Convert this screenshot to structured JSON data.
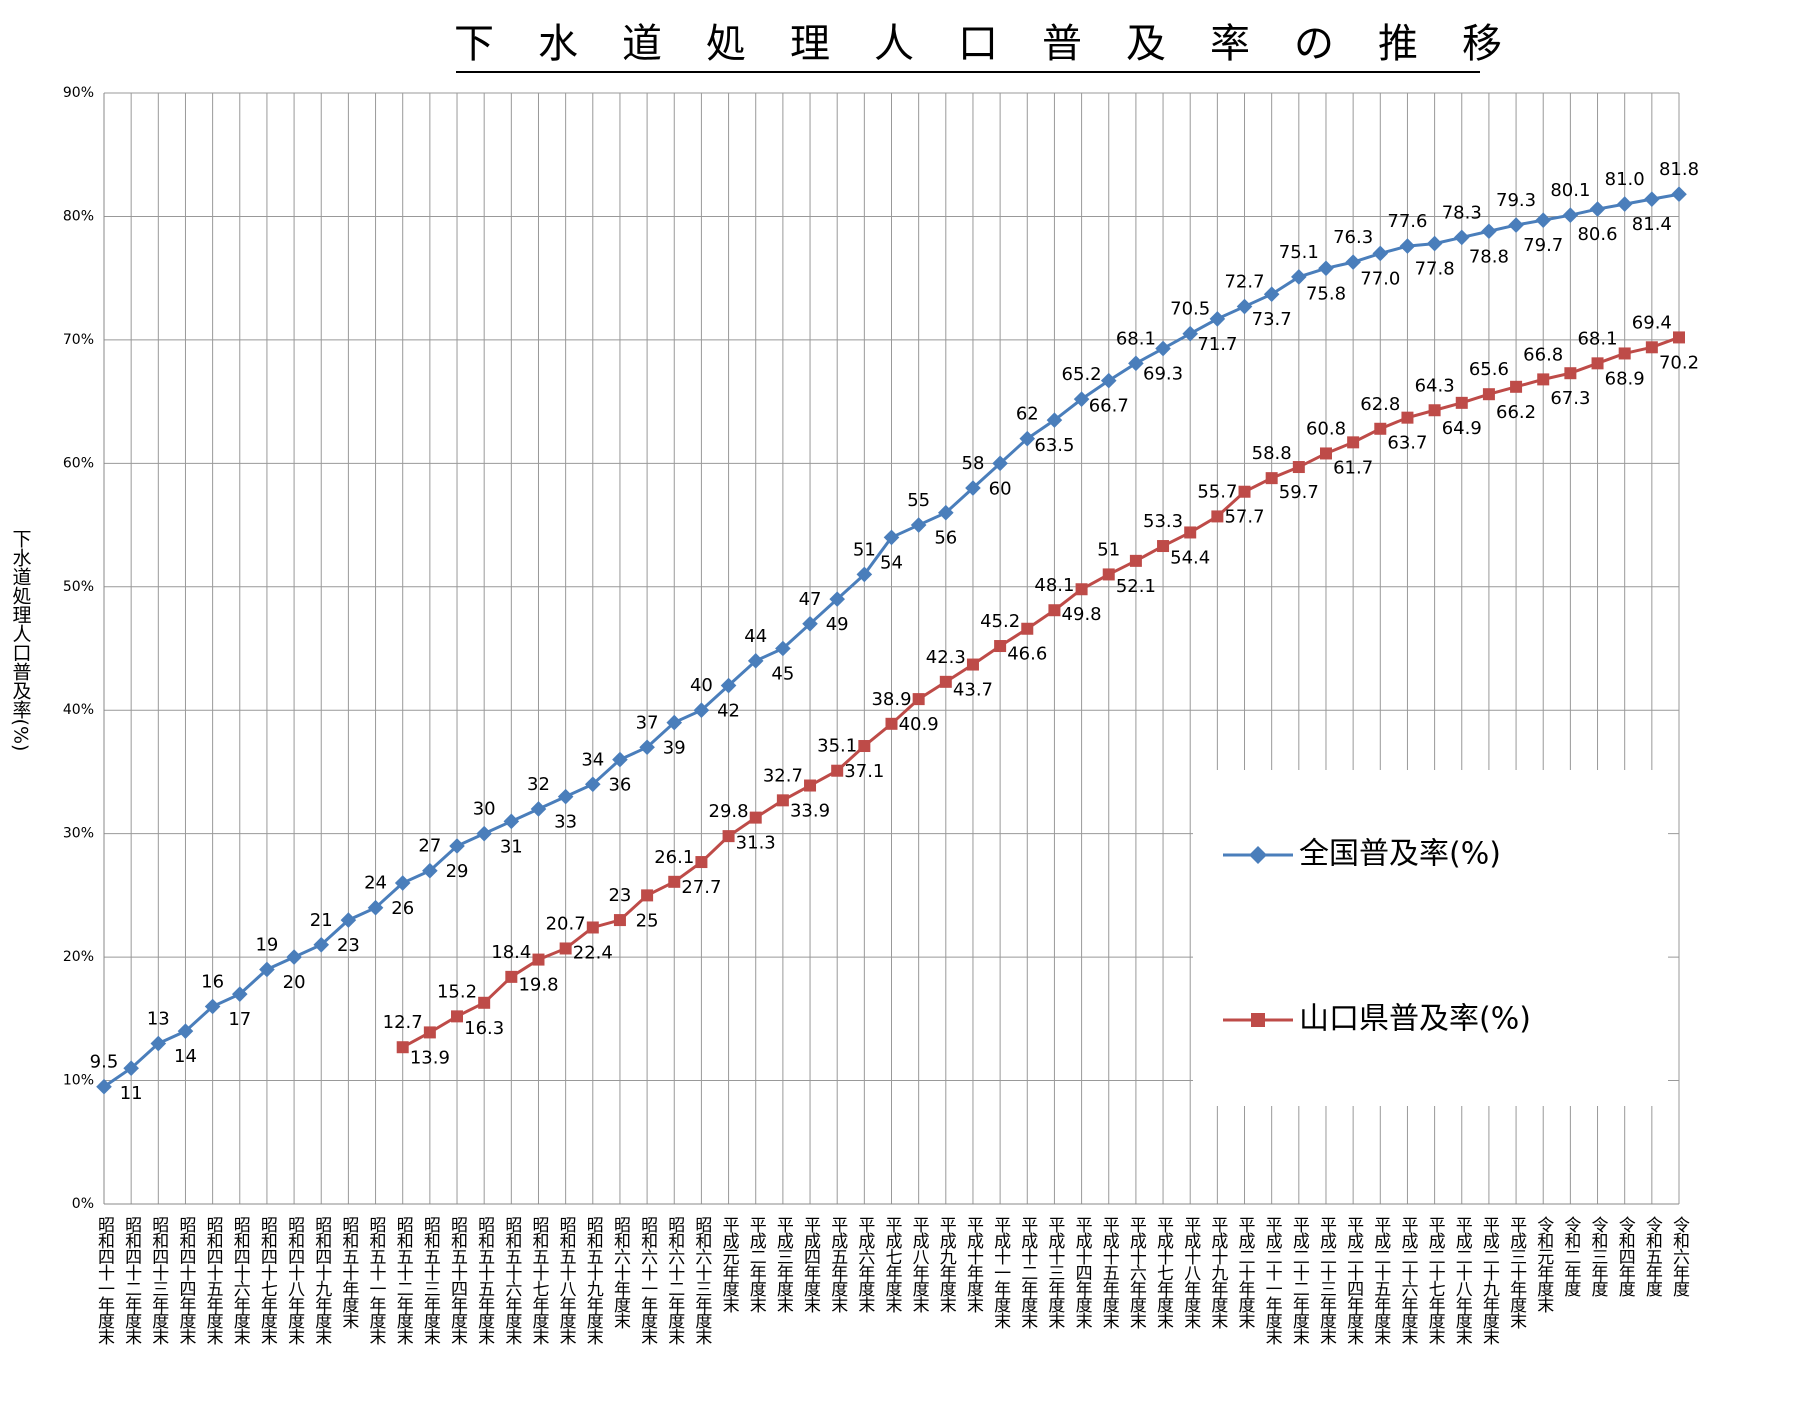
{
  "chart_data": {
    "type": "line",
    "title": "下水道処理人口普及率の推移",
    "y_label": "下水道処理人口普及率(%)",
    "categories": [
      "昭和四十一年度末",
      "昭和四十二年度末",
      "昭和四十三年度末",
      "昭和四十四年度末",
      "昭和四十五年度末",
      "昭和四十六年度末",
      "昭和四十七年度末",
      "昭和四十八年度末",
      "昭和四十九年度末",
      "昭和五十年度末",
      "昭和五十一年度末",
      "昭和五十二年度末",
      "昭和五十三年度末",
      "昭和五十四年度末",
      "昭和五十五年度末",
      "昭和五十六年度末",
      "昭和五十七年度末",
      "昭和五十八年度末",
      "昭和五十九年度末",
      "昭和六十年度末",
      "昭和六十一年度末",
      "昭和六十二年度末",
      "昭和六十三年度末",
      "平成元年度末",
      "平成二年度末",
      "平成三年度末",
      "平成四年度末",
      "平成五年度末",
      "平成六年度末",
      "平成七年度末",
      "平成八年度末",
      "平成九年度末",
      "平成十年度末",
      "平成十一年度末",
      "平成十二年度末",
      "平成十三年度末",
      "平成十四年度末",
      "平成十五年度末",
      "平成十六年度末",
      "平成十七年度末",
      "平成十八年度末",
      "平成十九年度末",
      "平成二十年度末",
      "平成二十一年度末",
      "平成二十二年度末",
      "平成二十三年度末",
      "平成二十四年度末",
      "平成二十五年度末",
      "平成二十六年度末",
      "平成二十七年度末",
      "平成二十八年度末",
      "平成二十九年度末",
      "平成三十年度末",
      "令和元年度末",
      "令和二年度",
      "令和三年度",
      "令和四年度",
      "令和五年度",
      "令和六年度"
    ],
    "series": [
      {
        "name": "全国普及率(%)",
        "color": "#4a7ebb",
        "marker": "diamond",
        "values": [
          9.5,
          11,
          13,
          14,
          16,
          17,
          19,
          20,
          21,
          23,
          24,
          26,
          27,
          29,
          30,
          31,
          32,
          33,
          34,
          36,
          37,
          39,
          40,
          42,
          44,
          45,
          47,
          49,
          51,
          54,
          55,
          56,
          58,
          60,
          62,
          63.5,
          65.2,
          66.7,
          68.1,
          69.3,
          70.5,
          71.7,
          72.7,
          73.7,
          75.1,
          75.8,
          76.3,
          77.0,
          77.6,
          77.8,
          78.3,
          78.8,
          79.3,
          79.7,
          80.1,
          80.6,
          81.0,
          81.4,
          81.8
        ],
        "value_labels": [
          "9.5",
          "11",
          "13",
          "14",
          "16",
          "17",
          "19",
          "20",
          "21",
          "23",
          "24",
          "26",
          "27",
          "29",
          "30",
          "31",
          "32",
          "33",
          "34",
          "36",
          "37",
          "39",
          "40",
          "42",
          "44",
          "45",
          "47",
          "49",
          "51",
          "54",
          "55",
          "56",
          "58",
          "60",
          "62",
          "63.5",
          "65.2",
          "66.7",
          "68.1",
          "69.3",
          "70.5",
          "71.7",
          "72.7",
          "73.7",
          "75.1",
          "75.8",
          "76.3",
          "77.0",
          "77.6",
          "77.8",
          "78.3",
          "78.8",
          "79.3",
          "79.7",
          "80.1",
          "80.6",
          "81.0",
          "81.4",
          "81.8"
        ]
      },
      {
        "name": "山口県普及率(%)",
        "color": "#be4b48",
        "marker": "square",
        "values": [
          null,
          null,
          null,
          null,
          null,
          null,
          null,
          null,
          null,
          null,
          null,
          12.7,
          13.9,
          15.2,
          16.3,
          18.4,
          19.8,
          20.7,
          22.4,
          23,
          25,
          26.1,
          27.7,
          29.8,
          31.3,
          32.7,
          33.9,
          35.1,
          37.1,
          38.9,
          40.9,
          42.3,
          43.7,
          45.2,
          46.6,
          48.1,
          49.8,
          51,
          52.1,
          53.3,
          54.4,
          55.7,
          57.7,
          58.8,
          59.7,
          60.8,
          61.7,
          62.8,
          63.7,
          64.3,
          64.9,
          65.6,
          66.2,
          66.8,
          67.3,
          68.1,
          68.9,
          69.4,
          70.2
        ],
        "value_labels": [
          null,
          null,
          null,
          null,
          null,
          null,
          null,
          null,
          null,
          null,
          null,
          "12.7",
          "13.9",
          "15.2",
          "16.3",
          "18.4",
          "19.8",
          "20.7",
          "22.4",
          "23",
          "25",
          "26.1",
          "27.7",
          "29.8",
          "31.3",
          "32.7",
          "33.9",
          "35.1",
          "37.1",
          "38.9",
          "40.9",
          "42.3",
          "43.7",
          "45.2",
          "46.6",
          "48.1",
          "49.8",
          "51",
          "52.1",
          "53.3",
          "54.4",
          "55.7",
          "57.7",
          "58.8",
          "59.7",
          "60.8",
          "61.7",
          "62.8",
          "63.7",
          "64.3",
          "64.9",
          "65.6",
          "66.2",
          "66.8",
          "67.3",
          "68.1",
          "68.9",
          "69.4",
          "70.2"
        ]
      }
    ],
    "ylim": [
      0,
      90
    ],
    "yticks": [
      {
        "value": 0,
        "label": "0%"
      },
      {
        "value": 10,
        "label": "10%"
      },
      {
        "value": 20,
        "label": "20%"
      },
      {
        "value": 30,
        "label": "30%"
      },
      {
        "value": 40,
        "label": "40%"
      },
      {
        "value": 50,
        "label": "50%"
      },
      {
        "value": 60,
        "label": "60%"
      },
      {
        "value": 70,
        "label": "70%"
      },
      {
        "value": 80,
        "label": "80%"
      },
      {
        "value": 90,
        "label": "90%"
      }
    ],
    "grid": true,
    "legend": "right"
  }
}
